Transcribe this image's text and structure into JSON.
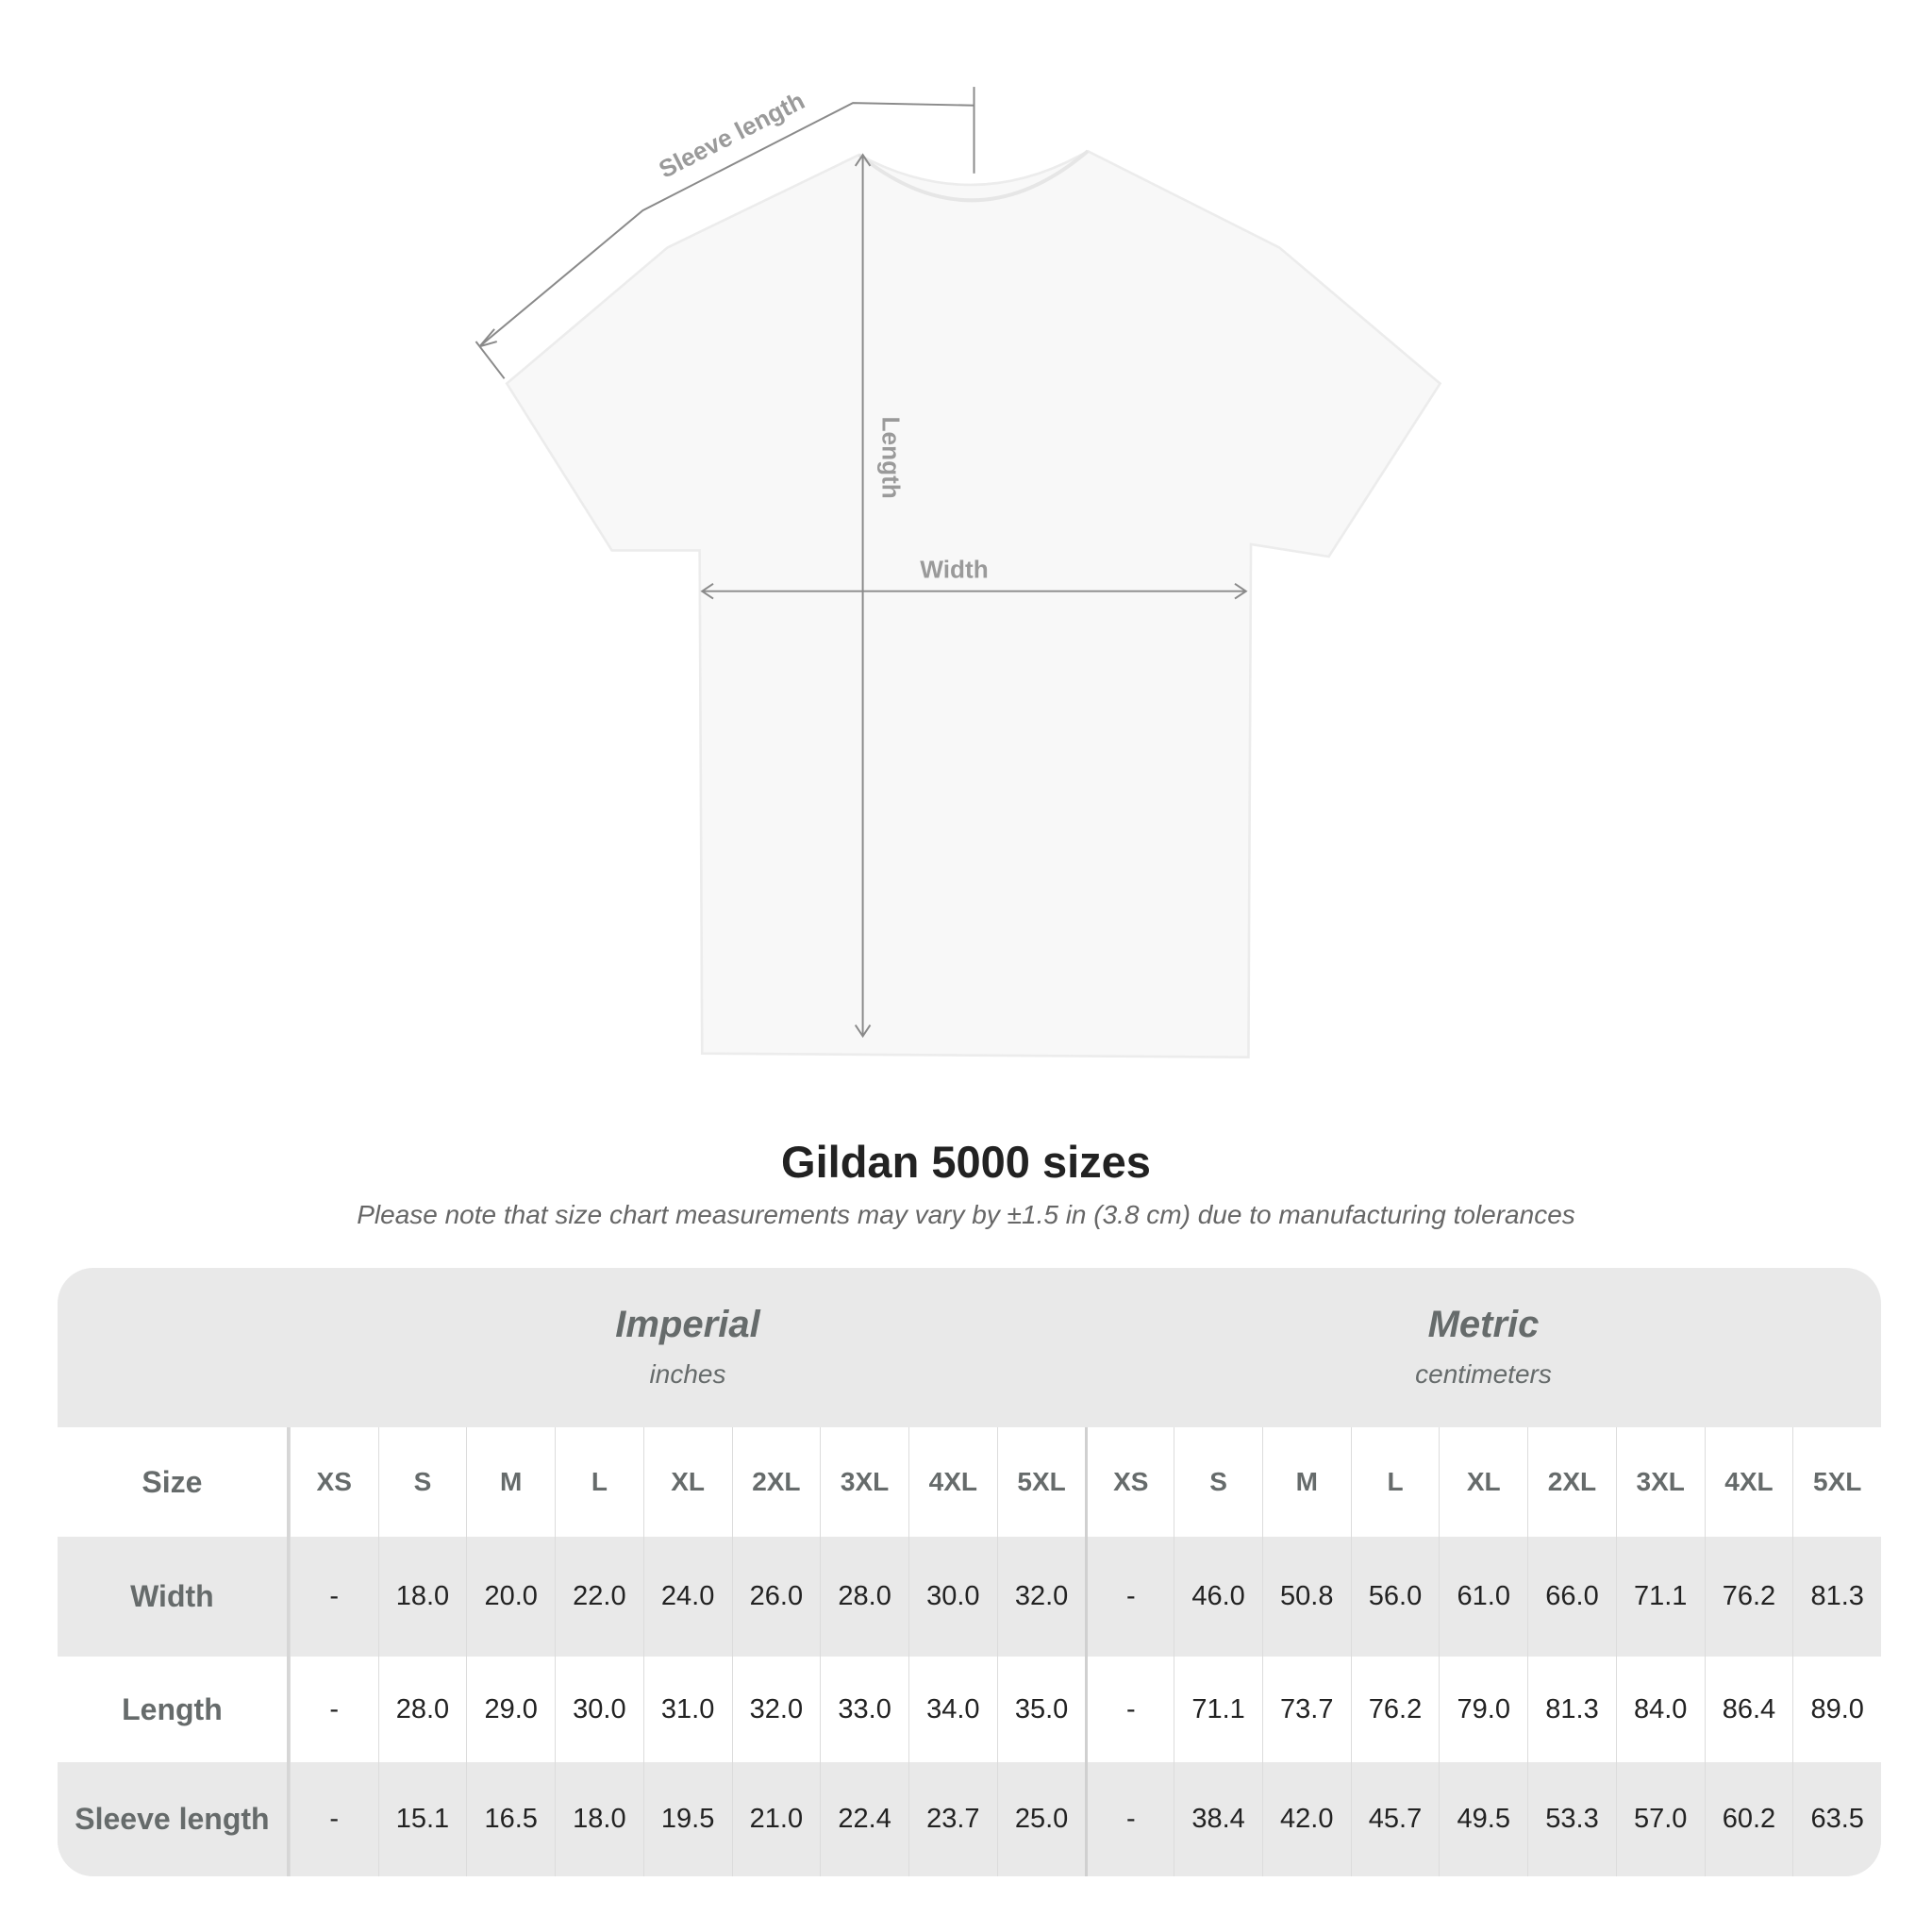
{
  "diagram": {
    "sleeve_label": "Sleeve length",
    "length_label": "Length",
    "width_label": "Width"
  },
  "title": "Gildan 5000 sizes",
  "note": "Please note that size chart measurements may vary by ±1.5 in (3.8 cm) due to manufacturing tolerances",
  "imperial": {
    "system": "Imperial",
    "unit": "inches"
  },
  "metric": {
    "system": "Metric",
    "unit": "centimeters"
  },
  "header": {
    "label": "Size",
    "sizes": [
      "XS",
      "S",
      "M",
      "L",
      "XL",
      "2XL",
      "3XL",
      "4XL",
      "5XL",
      "XS",
      "S",
      "M",
      "L",
      "XL",
      "2XL",
      "3XL",
      "4XL",
      "5XL"
    ]
  },
  "rows": [
    {
      "label": "Width",
      "values": [
        "-",
        "18.0",
        "20.0",
        "22.0",
        "24.0",
        "26.0",
        "28.0",
        "30.0",
        "32.0",
        "-",
        "46.0",
        "50.8",
        "56.0",
        "61.0",
        "66.0",
        "71.1",
        "76.2",
        "81.3"
      ]
    },
    {
      "label": "Length",
      "values": [
        "-",
        "28.0",
        "29.0",
        "30.0",
        "31.0",
        "32.0",
        "33.0",
        "34.0",
        "35.0",
        "-",
        "71.1",
        "73.7",
        "76.2",
        "79.0",
        "81.3",
        "84.0",
        "86.4",
        "89.0"
      ]
    },
    {
      "label": "Sleeve length",
      "values": [
        "-",
        "15.1",
        "16.5",
        "18.0",
        "19.5",
        "21.0",
        "22.4",
        "23.7",
        "25.0",
        "-",
        "38.4",
        "42.0",
        "45.7",
        "49.5",
        "53.3",
        "57.0",
        "60.2",
        "63.5"
      ]
    }
  ]
}
